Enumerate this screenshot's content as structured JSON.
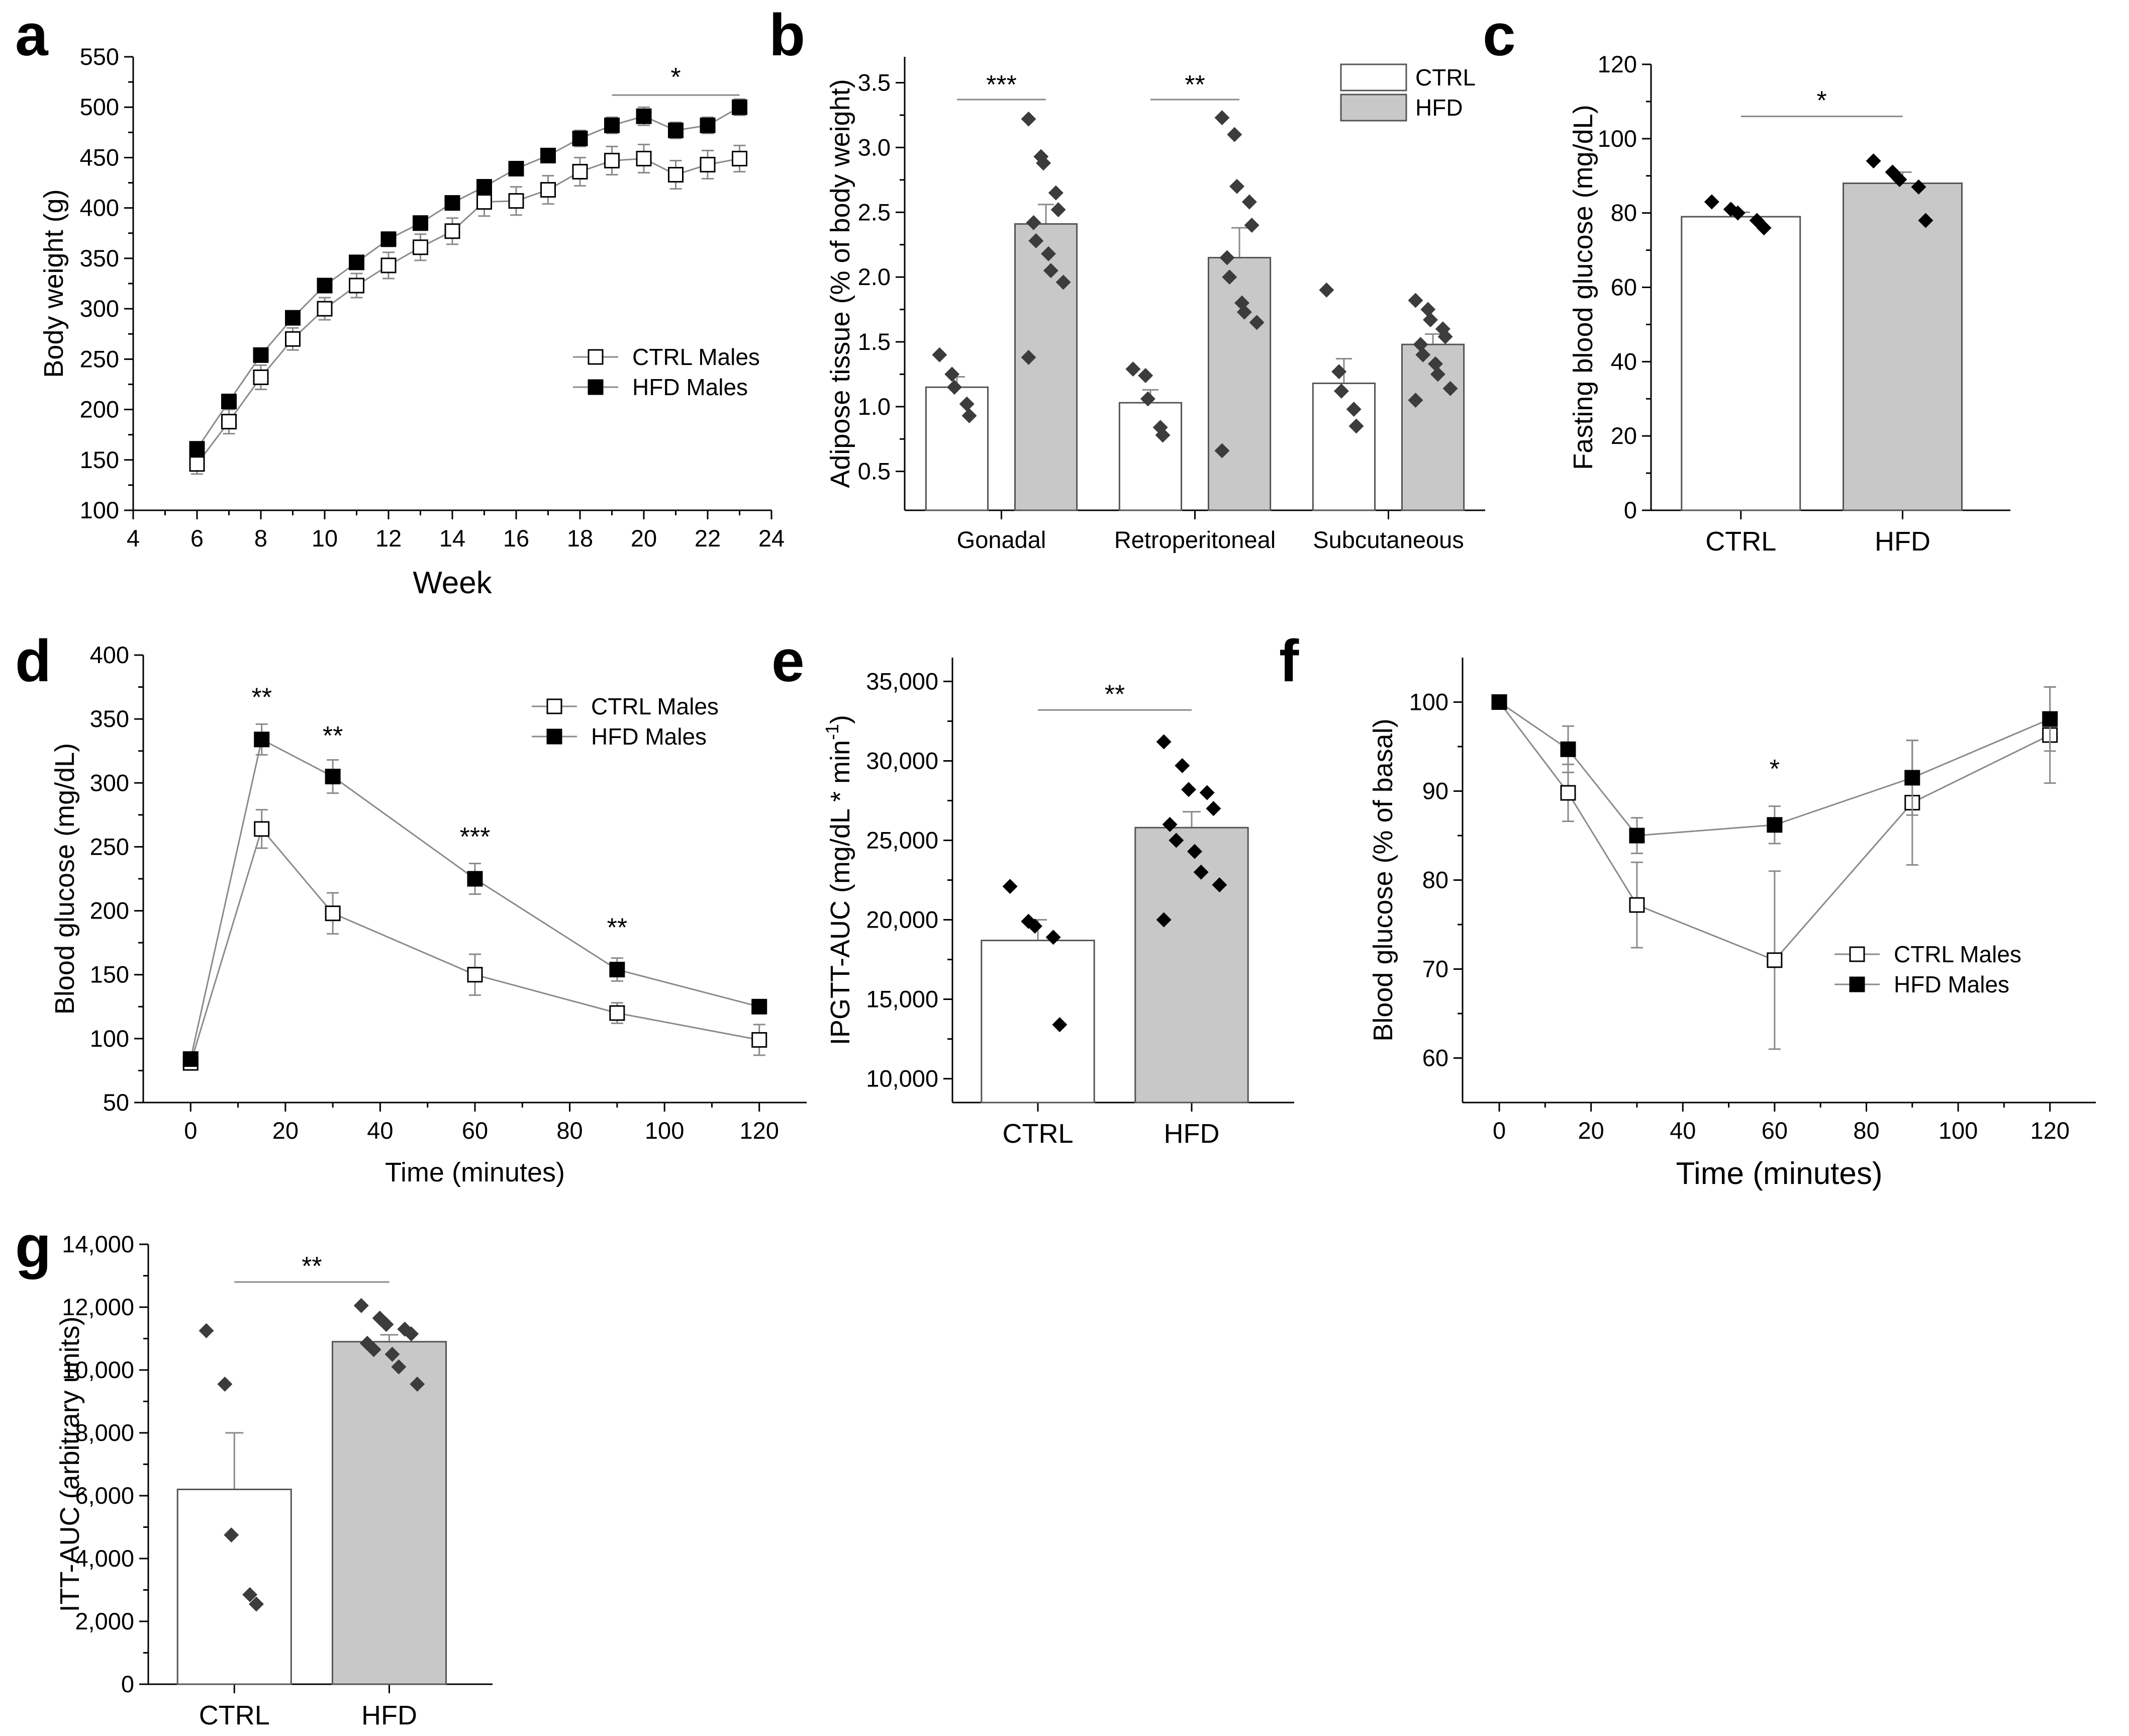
{
  "colors": {
    "ctrl_fill": "#ffffff",
    "hfd_fill": "#c8c8c8",
    "line_gray": "#8a8a8a",
    "dot_dark": "#3c3c3c",
    "black": "#000000"
  },
  "chart_data": [
    {
      "id": "a",
      "panel_letter": "a",
      "type": "line",
      "xlabel": "Week",
      "ylabel": "Body weight (g)",
      "xlim": [
        4,
        24
      ],
      "ylim": [
        100,
        550
      ],
      "xticks": [
        4,
        6,
        8,
        10,
        12,
        14,
        16,
        18,
        20,
        22,
        24
      ],
      "yticks": [
        100,
        150,
        200,
        250,
        300,
        350,
        400,
        450,
        500,
        550
      ],
      "legend": "center-right",
      "series": [
        {
          "name": "CTRL Males",
          "marker": "open-square",
          "x": [
            6,
            7,
            8,
            9,
            10,
            11,
            12,
            13,
            14,
            15,
            16,
            17,
            18,
            19,
            20,
            21,
            22,
            23
          ],
          "y": [
            146,
            188,
            232,
            270,
            300,
            323,
            343,
            361,
            377,
            406,
            407,
            418,
            436,
            447,
            449,
            433,
            443,
            449
          ],
          "err": [
            10,
            12,
            12,
            11,
            11,
            12,
            13,
            13,
            13,
            14,
            14,
            14,
            14,
            14,
            14,
            14,
            14,
            13
          ]
        },
        {
          "name": "HFD Males",
          "marker": "filled-square",
          "x": [
            6,
            7,
            8,
            9,
            10,
            11,
            12,
            13,
            14,
            15,
            16,
            17,
            18,
            19,
            20,
            21,
            22,
            23
          ],
          "y": [
            161,
            208,
            254,
            291,
            323,
            346,
            369,
            385,
            405,
            421,
            439,
            452,
            469,
            482,
            491,
            477,
            482,
            500
          ],
          "err": [
            5,
            5,
            6,
            6,
            6,
            6,
            7,
            7,
            7,
            7,
            7,
            7,
            8,
            8,
            9,
            8,
            8,
            8
          ]
        }
      ],
      "annotations": [
        {
          "label": "*",
          "x1": 19,
          "x2": 23,
          "y": 512
        }
      ]
    },
    {
      "id": "b",
      "panel_letter": "b",
      "type": "bar",
      "xlabel": "",
      "ylabel": "Adipose tissue (% of body weight)",
      "ylim": [
        0.2,
        3.7
      ],
      "yticks": [
        0.5,
        1.0,
        1.5,
        2.0,
        2.5,
        3.0,
        3.5
      ],
      "ytick_labels": [
        "0.5",
        "1.0",
        "1.5",
        "2.0",
        "2.5",
        "3.0",
        "3.5"
      ],
      "categories": [
        "Gonadal",
        "Retroperitoneal",
        "Subcutaneous"
      ],
      "legend": "top-right",
      "series": [
        {
          "name": "CTRL",
          "values": [
            1.15,
            1.03,
            1.18
          ],
          "err": [
            0.08,
            0.1,
            0.19
          ],
          "points": [
            [
              1.4,
              1.25,
              1.15,
              1.02,
              0.93
            ],
            [
              1.29,
              1.24,
              1.06,
              0.84,
              0.78
            ],
            [
              1.9,
              1.27,
              1.12,
              0.98,
              0.85
            ]
          ]
        },
        {
          "name": "HFD",
          "values": [
            2.41,
            2.15,
            1.48
          ],
          "err": [
            0.15,
            0.23,
            0.08
          ],
          "points": [
            [
              3.22,
              2.93,
              2.88,
              2.65,
              2.52,
              2.42,
              2.28,
              2.18,
              2.05,
              1.96,
              1.38
            ],
            [
              3.23,
              3.1,
              2.7,
              2.58,
              2.4,
              2.15,
              2.0,
              1.8,
              1.73,
              1.65,
              0.66
            ],
            [
              1.82,
              1.75,
              1.67,
              1.6,
              1.54,
              1.48,
              1.4,
              1.33,
              1.25,
              1.14,
              1.05
            ]
          ]
        }
      ],
      "annotations": [
        {
          "label": "***",
          "cat": 0,
          "y": 3.37
        },
        {
          "label": "**",
          "cat": 1,
          "y": 3.37
        }
      ]
    },
    {
      "id": "c",
      "panel_letter": "c",
      "type": "bar",
      "xlabel": "",
      "ylabel": "Fasting blood glucose (mg/dL)",
      "ylim": [
        0,
        120
      ],
      "yticks": [
        0,
        20,
        40,
        60,
        80,
        100,
        120
      ],
      "categories": [
        "CTRL",
        "HFD"
      ],
      "values": [
        79,
        88
      ],
      "err": [
        1.2,
        3.0
      ],
      "points": [
        [
          83,
          81,
          80,
          78,
          76
        ],
        [
          94,
          91,
          89,
          87,
          78
        ]
      ],
      "annotations": [
        {
          "label": "*",
          "y": 106
        }
      ]
    },
    {
      "id": "d",
      "panel_letter": "d",
      "type": "line",
      "xlabel": "Time (minutes)",
      "ylabel": "Blood glucose (mg/dL)",
      "xlim": [
        -10,
        130
      ],
      "ylim": [
        50,
        400
      ],
      "xticks": [
        0,
        20,
        40,
        60,
        80,
        100,
        120
      ],
      "yticks": [
        50,
        100,
        150,
        200,
        250,
        300,
        350,
        400
      ],
      "legend": "top-right",
      "series": [
        {
          "name": "CTRL Males",
          "marker": "open-square",
          "x": [
            0,
            15,
            30,
            60,
            90,
            120
          ],
          "y": [
            81,
            264,
            198,
            150,
            120,
            99
          ],
          "err": [
            3,
            15,
            16,
            16,
            8,
            12
          ]
        },
        {
          "name": "HFD Males",
          "marker": "filled-square",
          "x": [
            0,
            15,
            30,
            60,
            90,
            120
          ],
          "y": [
            84,
            334,
            305,
            225,
            154,
            125
          ],
          "err": [
            2,
            12,
            13,
            12,
            9,
            4
          ]
        }
      ],
      "annotations": [
        {
          "label": "**",
          "x": 15,
          "y": 360
        },
        {
          "label": "**",
          "x": 30,
          "y": 330
        },
        {
          "label": "***",
          "x": 60,
          "y": 251
        },
        {
          "label": "**",
          "x": 90,
          "y": 180
        }
      ]
    },
    {
      "id": "e",
      "panel_letter": "e",
      "type": "bar",
      "xlabel": "",
      "ylabel": "IPGTT-AUC (mg/dL * min",
      "ylabel_sup": "-1",
      "ylabel_close": ")",
      "ylim": [
        8500,
        36500
      ],
      "yticks": [
        10000,
        15000,
        20000,
        25000,
        30000,
        35000
      ],
      "ytick_labels": [
        "10,000",
        "15,000",
        "20,000",
        "25,000",
        "30,000",
        "35,000"
      ],
      "categories": [
        "CTRL",
        "HFD"
      ],
      "values": [
        18700,
        25800
      ],
      "err": [
        1300,
        1000
      ],
      "points": [
        [
          22100,
          19900,
          19600,
          18900,
          13400
        ],
        [
          31200,
          29700,
          28200,
          28000,
          27000,
          26000,
          25000,
          24300,
          23000,
          22200,
          20000
        ]
      ],
      "annotations": [
        {
          "label": "**",
          "y": 33200
        }
      ]
    },
    {
      "id": "f",
      "panel_letter": "f",
      "type": "line",
      "xlabel": "Time (minutes)",
      "ylabel": "Blood glucose (% of basal)",
      "xlim": [
        -8,
        130
      ],
      "ylim": [
        55,
        105
      ],
      "xticks": [
        0,
        20,
        40,
        60,
        80,
        100,
        120
      ],
      "yticks": [
        60,
        70,
        80,
        90,
        100
      ],
      "legend": "bottom-right",
      "series": [
        {
          "name": "CTRL Males",
          "marker": "open-square",
          "x": [
            0,
            15,
            30,
            60,
            90,
            120
          ],
          "y": [
            100,
            89.8,
            77.2,
            71,
            88.7,
            96.3
          ],
          "err": [
            0,
            3.2,
            4.8,
            10,
            7,
            5.4
          ]
        },
        {
          "name": "HFD Males",
          "marker": "filled-square",
          "x": [
            0,
            15,
            30,
            60,
            90,
            120
          ],
          "y": [
            100,
            94.7,
            85,
            86.2,
            91.5,
            98.1
          ],
          "err": [
            0,
            2.6,
            2.0,
            2.1,
            4.2,
            3.6
          ]
        }
      ],
      "annotations": [
        {
          "label": "*",
          "x": 60,
          "y": 91.5
        }
      ]
    },
    {
      "id": "g",
      "panel_letter": "g",
      "type": "bar",
      "xlabel": "",
      "ylabel": "ITT-AUC (arbitrary units)",
      "ylim": [
        0,
        14000
      ],
      "yticks": [
        0,
        2000,
        4000,
        6000,
        8000,
        10000,
        12000,
        14000
      ],
      "ytick_labels": [
        "0",
        "2,000",
        "4,000",
        "6,000",
        "8,000",
        "10,000",
        "12,000",
        "14,000"
      ],
      "categories": [
        "CTRL",
        "HFD"
      ],
      "values": [
        6200,
        10900
      ],
      "err": [
        1800,
        220
      ],
      "points": [
        [
          11250,
          9550,
          4750,
          2850,
          2550
        ],
        [
          12050,
          11650,
          11450,
          11300,
          11150,
          10850,
          10650,
          10500,
          10100,
          9550
        ]
      ],
      "annotations": [
        {
          "label": "**",
          "y": 12800
        }
      ]
    }
  ]
}
